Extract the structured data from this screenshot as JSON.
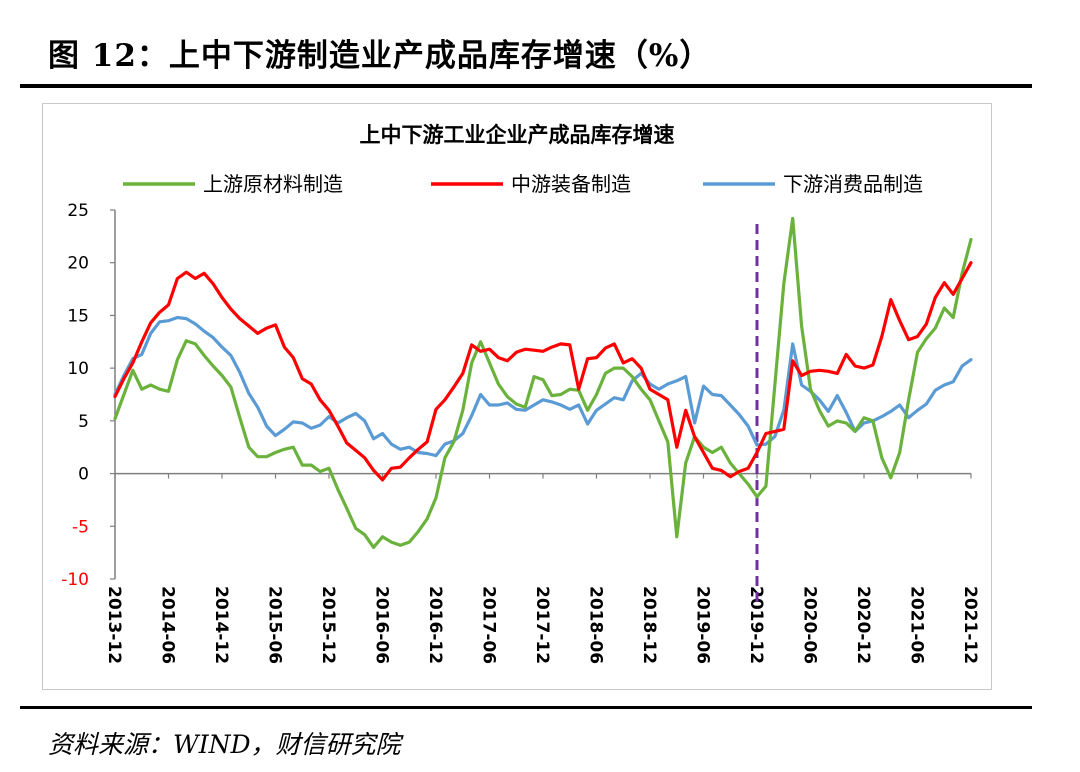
{
  "figure_title": "图 12：上中下游制造业产成品库存增速（%）",
  "source": "资料来源：WIND，财信研究院",
  "chart_data": {
    "type": "line",
    "title": "上中下游工业企业产成品库存增速",
    "legend_position": "top",
    "grid": false,
    "ylim": [
      -10,
      25
    ],
    "yticks": [
      25,
      20,
      15,
      10,
      5,
      0,
      -5,
      -10
    ],
    "xticks": [
      "2013-12",
      "2014-06",
      "2014-12",
      "2015-06",
      "2015-12",
      "2016-06",
      "2016-12",
      "2017-06",
      "2017-12",
      "2018-06",
      "2018-12",
      "2019-06",
      "2019-12",
      "2020-06",
      "2020-12",
      "2021-06",
      "2021-12"
    ],
    "x_start": "2013-12",
    "x_end": "2021-12",
    "marker_line": {
      "x": "2019-12",
      "color": "#7030A0",
      "style": "dashed"
    },
    "colors": {
      "upstream": "#6AB23C",
      "midstream": "#FF0000",
      "downstream": "#5B9BD5",
      "negative_ticks": "#FF0000"
    },
    "series": [
      {
        "name": "上游原材料制造",
        "color": "#6AB23C",
        "points": [
          [
            "2013-12",
            5.2
          ],
          [
            "2014-02",
            9.8
          ],
          [
            "2014-03",
            8.0
          ],
          [
            "2014-04",
            8.4
          ],
          [
            "2014-05",
            8.0
          ],
          [
            "2014-06",
            7.8
          ],
          [
            "2014-07",
            10.8
          ],
          [
            "2014-08",
            12.6
          ],
          [
            "2014-09",
            12.3
          ],
          [
            "2014-10",
            11.2
          ],
          [
            "2014-11",
            10.2
          ],
          [
            "2014-12",
            9.3
          ],
          [
            "2015-01",
            8.2
          ],
          [
            "2015-02",
            5.3
          ],
          [
            "2015-03",
            2.5
          ],
          [
            "2015-04",
            1.6
          ],
          [
            "2015-05",
            1.6
          ],
          [
            "2015-06",
            2.0
          ],
          [
            "2015-07",
            2.3
          ],
          [
            "2015-08",
            2.5
          ],
          [
            "2015-09",
            0.8
          ],
          [
            "2015-10",
            0.8
          ],
          [
            "2015-11",
            0.2
          ],
          [
            "2015-12",
            0.5
          ],
          [
            "2016-01",
            -1.5
          ],
          [
            "2016-02",
            -3.3
          ],
          [
            "2016-03",
            -5.2
          ],
          [
            "2016-04",
            -5.8
          ],
          [
            "2016-05",
            -7.0
          ],
          [
            "2016-06",
            -6.0
          ],
          [
            "2016-07",
            -6.5
          ],
          [
            "2016-08",
            -6.8
          ],
          [
            "2016-09",
            -6.5
          ],
          [
            "2016-10",
            -5.5
          ],
          [
            "2016-11",
            -4.3
          ],
          [
            "2016-12",
            -2.3
          ],
          [
            "2017-01",
            1.5
          ],
          [
            "2017-02",
            3.0
          ],
          [
            "2017-03",
            6.0
          ],
          [
            "2017-04",
            10.5
          ],
          [
            "2017-05",
            12.5
          ],
          [
            "2017-06",
            10.5
          ],
          [
            "2017-07",
            8.5
          ],
          [
            "2017-08",
            7.3
          ],
          [
            "2017-09",
            6.6
          ],
          [
            "2017-10",
            6.3
          ],
          [
            "2017-11",
            9.2
          ],
          [
            "2017-12",
            8.9
          ],
          [
            "2018-01",
            7.4
          ],
          [
            "2018-02",
            7.5
          ],
          [
            "2018-03",
            8.0
          ],
          [
            "2018-04",
            7.9
          ],
          [
            "2018-05",
            6.0
          ],
          [
            "2018-06",
            7.5
          ],
          [
            "2018-07",
            9.5
          ],
          [
            "2018-08",
            10.0
          ],
          [
            "2018-09",
            10.0
          ],
          [
            "2018-10",
            9.2
          ],
          [
            "2018-11",
            8.0
          ],
          [
            "2018-12",
            7.0
          ],
          [
            "2019-01",
            5.0
          ],
          [
            "2019-02",
            3.0
          ],
          [
            "2019-03",
            -6.0
          ],
          [
            "2019-04",
            1.0
          ],
          [
            "2019-05",
            3.5
          ],
          [
            "2019-06",
            2.5
          ],
          [
            "2019-07",
            2.0
          ],
          [
            "2019-08",
            2.5
          ],
          [
            "2019-09",
            1.0
          ],
          [
            "2019-10",
            0.0
          ],
          [
            "2019-11",
            -1.0
          ],
          [
            "2019-12",
            -2.2
          ],
          [
            "2020-01",
            -1.2
          ],
          [
            "2020-03",
            18.0
          ],
          [
            "2020-04",
            24.2
          ],
          [
            "2020-05",
            14.0
          ],
          [
            "2020-06",
            8.0
          ],
          [
            "2020-07",
            6.0
          ],
          [
            "2020-08",
            4.5
          ],
          [
            "2020-09",
            5.0
          ],
          [
            "2020-10",
            4.8
          ],
          [
            "2020-11",
            4.0
          ],
          [
            "2020-12",
            5.3
          ],
          [
            "2021-01",
            5.0
          ],
          [
            "2021-02",
            1.5
          ],
          [
            "2021-03",
            -0.4
          ],
          [
            "2021-04",
            2.0
          ],
          [
            "2021-05",
            7.0
          ],
          [
            "2021-06",
            11.5
          ],
          [
            "2021-07",
            12.8
          ],
          [
            "2021-08",
            13.8
          ],
          [
            "2021-09",
            15.7
          ],
          [
            "2021-10",
            14.8
          ],
          [
            "2021-11",
            19.0
          ],
          [
            "2021-12",
            22.2
          ]
        ]
      },
      {
        "name": "中游装备制造",
        "color": "#FF0000",
        "points": [
          [
            "2013-12",
            7.3
          ],
          [
            "2014-01",
            9.0
          ],
          [
            "2014-02",
            10.5
          ],
          [
            "2014-03",
            12.5
          ],
          [
            "2014-04",
            14.3
          ],
          [
            "2014-05",
            15.3
          ],
          [
            "2014-06",
            16.0
          ],
          [
            "2014-07",
            18.5
          ],
          [
            "2014-08",
            19.1
          ],
          [
            "2014-09",
            18.5
          ],
          [
            "2014-10",
            19.0
          ],
          [
            "2014-11",
            18.0
          ],
          [
            "2014-12",
            16.7
          ],
          [
            "2015-01",
            15.6
          ],
          [
            "2015-02",
            14.7
          ],
          [
            "2015-03",
            14.0
          ],
          [
            "2015-04",
            13.3
          ],
          [
            "2015-05",
            13.8
          ],
          [
            "2015-06",
            14.1
          ],
          [
            "2015-07",
            12.0
          ],
          [
            "2015-08",
            11.0
          ],
          [
            "2015-09",
            9.0
          ],
          [
            "2015-10",
            8.5
          ],
          [
            "2015-11",
            7.0
          ],
          [
            "2015-12",
            6.0
          ],
          [
            "2016-01",
            4.5
          ],
          [
            "2016-02",
            2.9
          ],
          [
            "2016-03",
            2.2
          ],
          [
            "2016-04",
            1.5
          ],
          [
            "2016-05",
            0.3
          ],
          [
            "2016-06",
            -0.6
          ],
          [
            "2016-07",
            0.5
          ],
          [
            "2016-08",
            0.6
          ],
          [
            "2016-09",
            1.5
          ],
          [
            "2016-10",
            2.3
          ],
          [
            "2016-11",
            3.0
          ],
          [
            "2016-12",
            6.1
          ],
          [
            "2017-01",
            7.0
          ],
          [
            "2017-02",
            8.2
          ],
          [
            "2017-03",
            9.5
          ],
          [
            "2017-04",
            12.2
          ],
          [
            "2017-05",
            11.6
          ],
          [
            "2017-06",
            11.8
          ],
          [
            "2017-07",
            11.0
          ],
          [
            "2017-08",
            10.7
          ],
          [
            "2017-09",
            11.5
          ],
          [
            "2017-10",
            11.8
          ],
          [
            "2017-11",
            11.7
          ],
          [
            "2017-12",
            11.6
          ],
          [
            "2018-01",
            12.0
          ],
          [
            "2018-02",
            12.3
          ],
          [
            "2018-03",
            12.2
          ],
          [
            "2018-04",
            8.0
          ],
          [
            "2018-05",
            10.9
          ],
          [
            "2018-06",
            11.0
          ],
          [
            "2018-07",
            11.9
          ],
          [
            "2018-08",
            12.3
          ],
          [
            "2018-09",
            10.5
          ],
          [
            "2018-10",
            10.9
          ],
          [
            "2018-11",
            10.0
          ],
          [
            "2018-12",
            8.0
          ],
          [
            "2019-01",
            7.5
          ],
          [
            "2019-02",
            7.0
          ],
          [
            "2019-03",
            2.5
          ],
          [
            "2019-04",
            6.0
          ],
          [
            "2019-05",
            3.5
          ],
          [
            "2019-06",
            2.0
          ],
          [
            "2019-07",
            0.5
          ],
          [
            "2019-08",
            0.3
          ],
          [
            "2019-09",
            -0.3
          ],
          [
            "2019-10",
            0.2
          ],
          [
            "2019-11",
            0.5
          ],
          [
            "2019-12",
            2.0
          ],
          [
            "2020-01",
            3.8
          ],
          [
            "2020-02",
            4.0
          ],
          [
            "2020-03",
            4.2
          ],
          [
            "2020-04",
            10.7
          ],
          [
            "2020-05",
            9.3
          ],
          [
            "2020-06",
            9.7
          ],
          [
            "2020-07",
            9.8
          ],
          [
            "2020-08",
            9.7
          ],
          [
            "2020-09",
            9.5
          ],
          [
            "2020-10",
            11.3
          ],
          [
            "2020-11",
            10.2
          ],
          [
            "2020-12",
            10.0
          ],
          [
            "2021-01",
            10.3
          ],
          [
            "2021-02",
            13.0
          ],
          [
            "2021-03",
            16.5
          ],
          [
            "2021-04",
            14.5
          ],
          [
            "2021-05",
            12.7
          ],
          [
            "2021-06",
            13.0
          ],
          [
            "2021-07",
            14.2
          ],
          [
            "2021-08",
            16.7
          ],
          [
            "2021-09",
            18.1
          ],
          [
            "2021-10",
            17.0
          ],
          [
            "2021-11",
            18.5
          ],
          [
            "2021-12",
            20.0
          ]
        ]
      },
      {
        "name": "下游消费品制造",
        "color": "#5B9BD5",
        "points": [
          [
            "2013-12",
            7.5
          ],
          [
            "2014-01",
            9.3
          ],
          [
            "2014-02",
            10.9
          ],
          [
            "2014-03",
            11.3
          ],
          [
            "2014-04",
            13.3
          ],
          [
            "2014-05",
            14.4
          ],
          [
            "2014-06",
            14.5
          ],
          [
            "2014-07",
            14.8
          ],
          [
            "2014-08",
            14.7
          ],
          [
            "2014-09",
            14.2
          ],
          [
            "2014-10",
            13.5
          ],
          [
            "2014-11",
            12.9
          ],
          [
            "2014-12",
            12.0
          ],
          [
            "2015-01",
            11.2
          ],
          [
            "2015-02",
            9.6
          ],
          [
            "2015-03",
            7.6
          ],
          [
            "2015-04",
            6.3
          ],
          [
            "2015-05",
            4.5
          ],
          [
            "2015-06",
            3.6
          ],
          [
            "2015-07",
            4.2
          ],
          [
            "2015-08",
            4.9
          ],
          [
            "2015-09",
            4.8
          ],
          [
            "2015-10",
            4.3
          ],
          [
            "2015-11",
            4.6
          ],
          [
            "2015-12",
            5.4
          ],
          [
            "2016-01",
            4.8
          ],
          [
            "2016-02",
            5.3
          ],
          [
            "2016-03",
            5.7
          ],
          [
            "2016-04",
            5.0
          ],
          [
            "2016-05",
            3.3
          ],
          [
            "2016-06",
            3.8
          ],
          [
            "2016-07",
            2.8
          ],
          [
            "2016-08",
            2.3
          ],
          [
            "2016-09",
            2.5
          ],
          [
            "2016-10",
            2.0
          ],
          [
            "2016-11",
            1.9
          ],
          [
            "2016-12",
            1.7
          ],
          [
            "2017-01",
            2.8
          ],
          [
            "2017-02",
            3.1
          ],
          [
            "2017-03",
            3.8
          ],
          [
            "2017-04",
            5.5
          ],
          [
            "2017-05",
            7.5
          ],
          [
            "2017-06",
            6.5
          ],
          [
            "2017-07",
            6.5
          ],
          [
            "2017-08",
            6.7
          ],
          [
            "2017-09",
            6.1
          ],
          [
            "2017-10",
            6.0
          ],
          [
            "2017-11",
            6.5
          ],
          [
            "2017-12",
            7.0
          ],
          [
            "2018-01",
            6.8
          ],
          [
            "2018-02",
            6.5
          ],
          [
            "2018-03",
            6.1
          ],
          [
            "2018-04",
            6.5
          ],
          [
            "2018-05",
            4.7
          ],
          [
            "2018-06",
            6.0
          ],
          [
            "2018-07",
            6.6
          ],
          [
            "2018-08",
            7.2
          ],
          [
            "2018-09",
            7.0
          ],
          [
            "2018-10",
            8.8
          ],
          [
            "2018-11",
            9.5
          ],
          [
            "2018-12",
            8.5
          ],
          [
            "2019-01",
            8.0
          ],
          [
            "2019-02",
            8.5
          ],
          [
            "2019-03",
            8.8
          ],
          [
            "2019-04",
            9.2
          ],
          [
            "2019-05",
            4.8
          ],
          [
            "2019-06",
            8.3
          ],
          [
            "2019-07",
            7.5
          ],
          [
            "2019-08",
            7.4
          ],
          [
            "2019-09",
            6.5
          ],
          [
            "2019-10",
            5.6
          ],
          [
            "2019-11",
            4.5
          ],
          [
            "2019-12",
            2.7
          ],
          [
            "2020-01",
            2.8
          ],
          [
            "2020-02",
            3.5
          ],
          [
            "2020-03",
            6.0
          ],
          [
            "2020-04",
            12.3
          ],
          [
            "2020-05",
            8.4
          ],
          [
            "2020-06",
            7.8
          ],
          [
            "2020-07",
            7.0
          ],
          [
            "2020-08",
            5.9
          ],
          [
            "2020-09",
            7.4
          ],
          [
            "2020-10",
            5.8
          ],
          [
            "2020-11",
            4.0
          ],
          [
            "2020-12",
            4.8
          ],
          [
            "2021-01",
            5.0
          ],
          [
            "2021-02",
            5.4
          ],
          [
            "2021-03",
            5.9
          ],
          [
            "2021-04",
            6.5
          ],
          [
            "2021-05",
            5.3
          ],
          [
            "2021-06",
            6.0
          ],
          [
            "2021-07",
            6.6
          ],
          [
            "2021-08",
            7.9
          ],
          [
            "2021-09",
            8.4
          ],
          [
            "2021-10",
            8.7
          ],
          [
            "2021-11",
            10.2
          ],
          [
            "2021-12",
            10.8
          ]
        ]
      }
    ]
  }
}
